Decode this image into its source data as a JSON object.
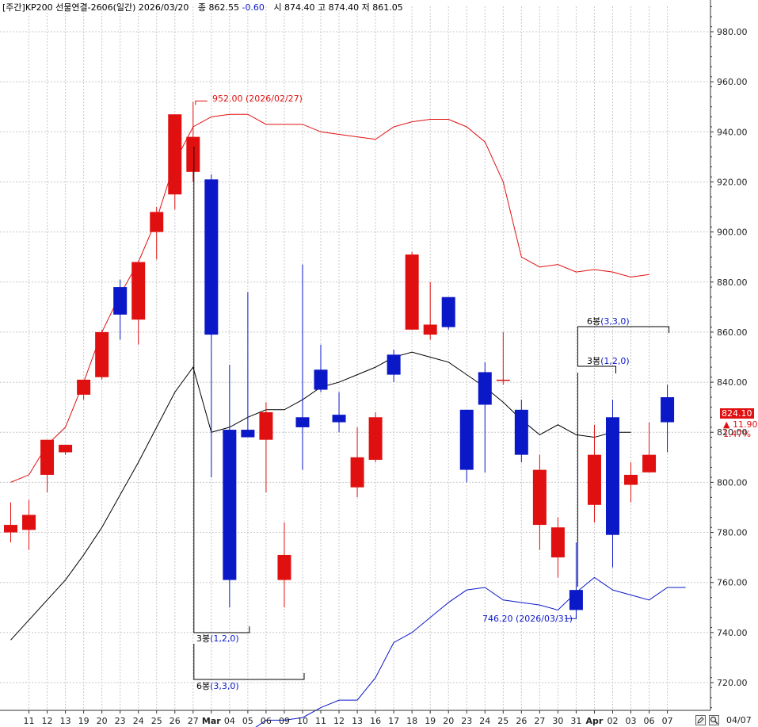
{
  "header": {
    "prefix": "[주간]",
    "title": "KP200 선물연결-2606(일간) 2026/03/20",
    "close_label": "종",
    "close_value": "862.55",
    "change": "-0.60",
    "ohl_label": "시 874.40 고 874.40 저 861.05"
  },
  "price_tag": {
    "price": "824.10",
    "change": "▲ 11.90",
    "change_pct": "1.47%"
  },
  "annotations": {
    "high_label": "952.00 (2026/02/27)",
    "low_label": "746.20 (2026/03/31)",
    "bong3_left": "3봉",
    "bong3_paren": "(1,2,0)",
    "bong6_left": "6봉",
    "bong6_paren": "(3,3,0)"
  },
  "bottom_bar": {
    "date_label": "04/07",
    "edit_icon": "pencil-icon",
    "zoom_icon": "magnifier-icon"
  },
  "colors": {
    "up": "#e01010",
    "down": "#0b18c8",
    "upper_band": "#e01010",
    "lower_band": "#0b18c8",
    "middle_band": "#000000",
    "grid": "#c8c8c8"
  },
  "chart_data": {
    "type": "candlestick",
    "y_ticks": [
      "720.00",
      "740.00",
      "760.00",
      "780.00",
      "800.00",
      "820.00",
      "840.00",
      "860.00",
      "880.00",
      "900.00",
      "920.00",
      "940.00",
      "960.00",
      "980.00"
    ],
    "ylim": [
      710,
      997
    ],
    "x_labels": [
      "11",
      "12",
      "13",
      "19",
      "20",
      "23",
      "24",
      "25",
      "26",
      "27",
      "Mar",
      "04",
      "05",
      "06",
      "09",
      "10",
      "11",
      "12",
      "13",
      "16",
      "17",
      "18",
      "19",
      "20",
      "23",
      "24",
      "25",
      "26",
      "27",
      "30",
      "31",
      "Apr",
      "02",
      "03",
      "06",
      "07"
    ],
    "candles": [
      {
        "o": 780,
        "h": 792,
        "l": 776,
        "c": 783
      },
      {
        "o": 781,
        "h": 793,
        "l": 773,
        "c": 787
      },
      {
        "o": 803,
        "h": 817,
        "l": 796,
        "c": 817
      },
      {
        "o": 812,
        "h": 815,
        "l": 811,
        "c": 815
      },
      {
        "o": 835,
        "h": 841,
        "l": 833,
        "c": 841
      },
      {
        "o": 842,
        "h": 861,
        "l": 841,
        "c": 860
      },
      {
        "o": 878,
        "h": 881,
        "l": 857,
        "c": 867
      },
      {
        "o": 865,
        "h": 888,
        "l": 855,
        "c": 888
      },
      {
        "o": 900,
        "h": 910,
        "l": 889,
        "c": 908
      },
      {
        "o": 915,
        "h": 947,
        "l": 909,
        "c": 947
      },
      {
        "o": 924,
        "h": 952,
        "l": 920,
        "c": 938
      },
      {
        "o": 921,
        "h": 923,
        "l": 802,
        "c": 859
      },
      {
        "o": 821,
        "h": 847,
        "l": 750,
        "c": 761
      },
      {
        "o": 821,
        "h": 876,
        "l": 818,
        "c": 818
      },
      {
        "o": 817,
        "h": 832,
        "l": 796,
        "c": 828
      },
      {
        "o": 761,
        "h": 784,
        "l": 750,
        "c": 771
      },
      {
        "o": 826,
        "h": 887,
        "l": 805,
        "c": 822
      },
      {
        "o": 845,
        "h": 855,
        "l": 836,
        "c": 837
      },
      {
        "o": 827,
        "h": 836,
        "l": 820,
        "c": 824
      },
      {
        "o": 798,
        "h": 822,
        "l": 794,
        "c": 810
      },
      {
        "o": 809,
        "h": 828,
        "l": 808,
        "c": 826
      },
      {
        "o": 851,
        "h": 853,
        "l": 840,
        "c": 843
      },
      {
        "o": 861,
        "h": 892,
        "l": 861,
        "c": 891
      },
      {
        "o": 859,
        "h": 880,
        "l": 857,
        "c": 863
      },
      {
        "o": 874,
        "h": 874,
        "l": 861,
        "c": 862
      },
      {
        "o": 829,
        "h": 829,
        "l": 800,
        "c": 805
      },
      {
        "o": 844,
        "h": 848,
        "l": 804,
        "c": 831
      },
      {
        "o": 841,
        "h": 860,
        "l": 839,
        "c": 841
      },
      {
        "o": 829,
        "h": 833,
        "l": 808,
        "c": 811
      },
      {
        "o": 783,
        "h": 811,
        "l": 773,
        "c": 805
      },
      {
        "o": 770,
        "h": 786,
        "l": 762,
        "c": 782
      },
      {
        "o": 757,
        "h": 776,
        "l": 746,
        "c": 749
      },
      {
        "o": 791,
        "h": 823,
        "l": 784,
        "c": 811
      },
      {
        "o": 826,
        "h": 833,
        "l": 766,
        "c": 779
      },
      {
        "o": 799,
        "h": 808,
        "l": 792,
        "c": 803
      },
      {
        "o": 804,
        "h": 824,
        "l": 804,
        "c": 811
      },
      {
        "o": 834,
        "h": 839,
        "l": 812,
        "c": 824
      }
    ],
    "upper_band": [
      800,
      803,
      815,
      822,
      840,
      860,
      875,
      888,
      905,
      928,
      942,
      946,
      947,
      947,
      943,
      943,
      943,
      940,
      939,
      938,
      937,
      942,
      944,
      945,
      945,
      942,
      936,
      920,
      890,
      886,
      887,
      884,
      885,
      884,
      882,
      883
    ],
    "middle_band": [
      737,
      745,
      753,
      761,
      771,
      782,
      795,
      808,
      822,
      836,
      846,
      820,
      822,
      826,
      829,
      829,
      833,
      838,
      840,
      843,
      846,
      850,
      852,
      850,
      848,
      843,
      838,
      832,
      825,
      819,
      823,
      819,
      818,
      820,
      820
    ],
    "lower_band": [
      700,
      705,
      705,
      706,
      710,
      713,
      713,
      722,
      736,
      740,
      746,
      752,
      757,
      758,
      753,
      752,
      751,
      749,
      756,
      762,
      757,
      755,
      753,
      758,
      758
    ],
    "middle_start": 0,
    "lower_start": 13,
    "high_marker": {
      "value": 952.0,
      "date": "2026/02/27",
      "index": 10
    },
    "low_marker": {
      "value": 746.2,
      "date": "2026/03/31",
      "index": 31
    }
  }
}
